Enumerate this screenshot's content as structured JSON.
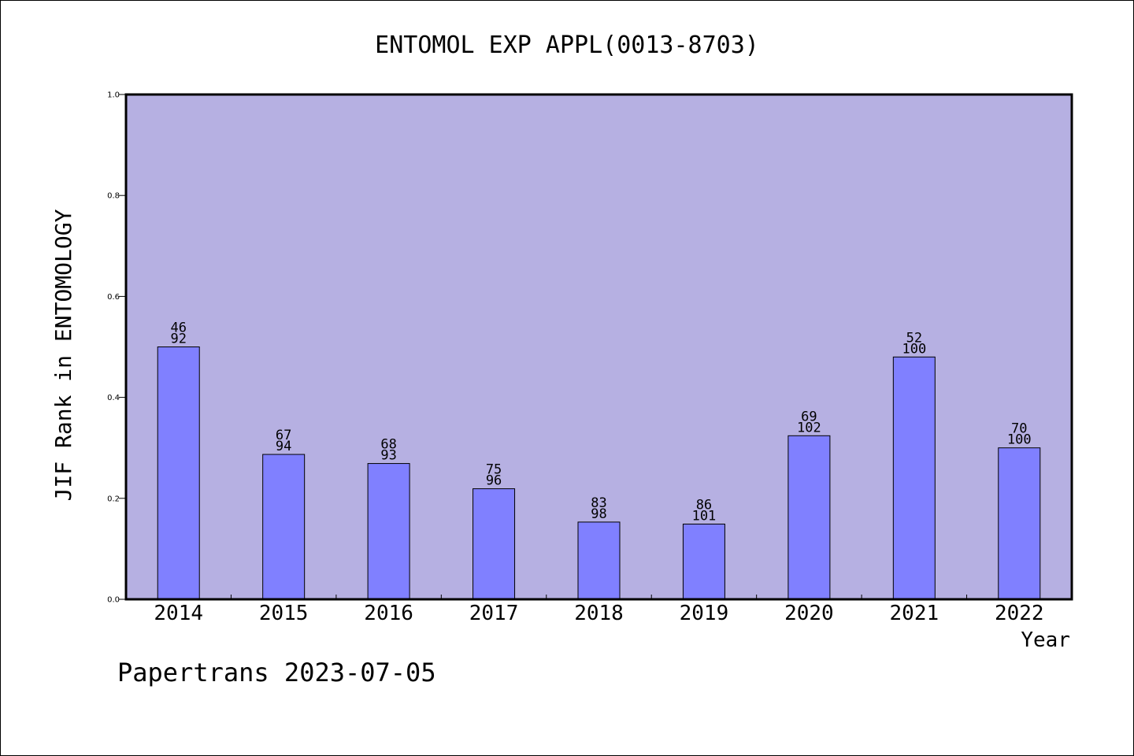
{
  "chart_data": {
    "type": "bar",
    "title": "ENTOMOL EXP APPL(0013-8703)",
    "xlabel": "Year",
    "ylabel": "JIF Rank in ENTOMOLOGY",
    "footer": "Papertrans 2023-07-05",
    "categories": [
      "2014",
      "2015",
      "2016",
      "2017",
      "2018",
      "2019",
      "2020",
      "2021",
      "2022"
    ],
    "values": [
      0.5,
      0.287,
      0.269,
      0.219,
      0.153,
      0.149,
      0.324,
      0.48,
      0.3
    ],
    "rank_labels": [
      {
        "rank": "46",
        "total": "92"
      },
      {
        "rank": "67",
        "total": "94"
      },
      {
        "rank": "68",
        "total": "93"
      },
      {
        "rank": "75",
        "total": "96"
      },
      {
        "rank": "83",
        "total": "98"
      },
      {
        "rank": "86",
        "total": "101"
      },
      {
        "rank": "69",
        "total": "102"
      },
      {
        "rank": "52",
        "total": "100"
      },
      {
        "rank": "70",
        "total": "100"
      }
    ],
    "ylim": [
      0,
      1.0
    ],
    "yticks": [
      "0.0",
      "0.2",
      "0.4",
      "0.6",
      "0.8",
      "1.0"
    ],
    "grid": false,
    "colors": {
      "plot_background": "#b6b0e2",
      "bar_fill": "#8080ff",
      "bar_stroke": "#000000"
    }
  }
}
